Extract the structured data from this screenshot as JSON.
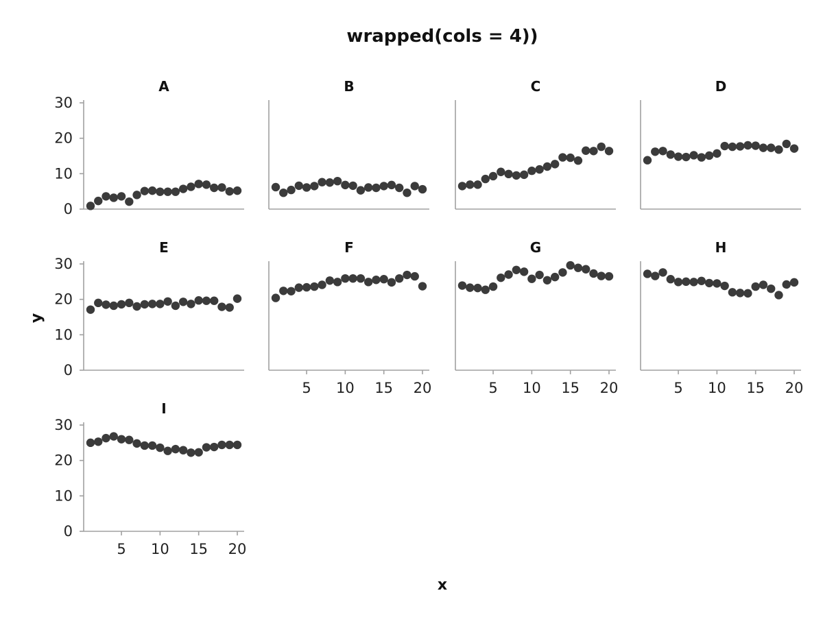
{
  "chart_data": {
    "type": "scatter",
    "title": "wrapped(cols = 4))",
    "xlabel": "x",
    "ylabel": "y",
    "xlim": [
      0,
      21
    ],
    "ylim": [
      0,
      30
    ],
    "x_ticks": [
      5,
      10,
      15,
      20
    ],
    "y_ticks": [
      0,
      10,
      20,
      30
    ],
    "grid": false,
    "legend": "none",
    "point_color": "#3b3b3b",
    "axis_color": "#a0a0a0",
    "x": [
      1,
      2,
      3,
      4,
      5,
      6,
      7,
      8,
      9,
      10,
      11,
      12,
      13,
      14,
      15,
      16,
      17,
      18,
      19,
      20
    ],
    "panels": [
      {
        "label": "A",
        "values": [
          0.9,
          2.3,
          3.6,
          3.2,
          3.6,
          2.1,
          4.0,
          5.1,
          5.2,
          4.9,
          4.9,
          4.9,
          5.7,
          6.3,
          7.1,
          6.9,
          6.0,
          6.1,
          5.0,
          5.2
        ]
      },
      {
        "label": "B",
        "values": [
          6.2,
          4.6,
          5.4,
          6.6,
          6.1,
          6.5,
          7.6,
          7.5,
          7.9,
          6.8,
          6.6,
          5.3,
          6.1,
          6.0,
          6.5,
          6.8,
          6.0,
          4.6,
          6.5,
          5.6
        ]
      },
      {
        "label": "C",
        "values": [
          6.5,
          6.9,
          6.9,
          8.5,
          9.3,
          10.5,
          9.9,
          9.5,
          9.7,
          10.8,
          11.2,
          12.0,
          12.7,
          14.6,
          14.5,
          13.7,
          16.5,
          16.4,
          17.6,
          16.4
        ]
      },
      {
        "label": "D",
        "values": [
          13.8,
          16.2,
          16.4,
          15.4,
          14.8,
          14.7,
          15.2,
          14.6,
          15.1,
          15.7,
          17.8,
          17.6,
          17.7,
          18.0,
          17.9,
          17.3,
          17.3,
          16.8,
          18.4,
          17.1
        ]
      },
      {
        "label": "E",
        "values": [
          17.1,
          19.0,
          18.5,
          18.2,
          18.6,
          19.0,
          18.0,
          18.6,
          18.7,
          18.7,
          19.4,
          18.2,
          19.3,
          18.7,
          19.7,
          19.6,
          19.6,
          17.9,
          17.7,
          20.2
        ]
      },
      {
        "label": "F",
        "values": [
          20.4,
          22.4,
          22.3,
          23.3,
          23.4,
          23.6,
          24.1,
          25.3,
          24.9,
          25.9,
          25.9,
          25.9,
          24.9,
          25.5,
          25.7,
          24.8,
          25.9,
          26.9,
          26.5,
          23.7
        ]
      },
      {
        "label": "G",
        "values": [
          23.9,
          23.3,
          23.2,
          22.7,
          23.6,
          26.1,
          27.0,
          28.3,
          27.8,
          25.8,
          26.9,
          25.4,
          26.3,
          27.6,
          29.6,
          28.9,
          28.5,
          27.3,
          26.6,
          26.5
        ]
      },
      {
        "label": "H",
        "values": [
          27.2,
          26.6,
          27.6,
          25.7,
          24.9,
          25.0,
          24.9,
          25.2,
          24.6,
          24.5,
          23.8,
          22.0,
          21.8,
          21.7,
          23.6,
          24.1,
          23.0,
          21.2,
          24.2,
          24.8
        ]
      },
      {
        "label": "I",
        "values": [
          25.0,
          25.3,
          26.3,
          26.8,
          26.0,
          25.8,
          24.8,
          24.2,
          24.2,
          23.6,
          22.7,
          23.2,
          22.9,
          22.2,
          22.3,
          23.7,
          23.8,
          24.4,
          24.4,
          24.4
        ]
      }
    ]
  }
}
